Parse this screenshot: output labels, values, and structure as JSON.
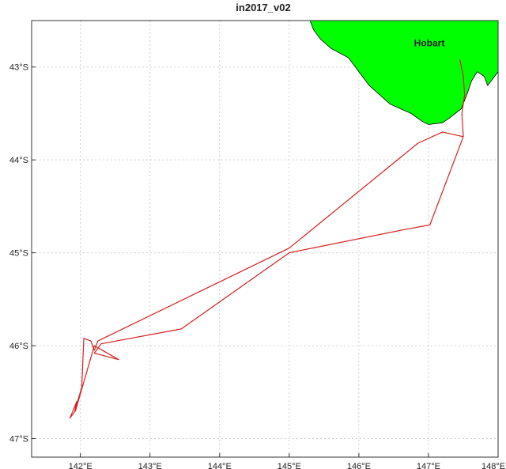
{
  "title": "in2017_v02",
  "colors": {
    "land": "#00ff00",
    "land_outline": "#000000",
    "track": "#d62020",
    "grid": "#d0d0d0",
    "background": "#ffffff"
  },
  "place": {
    "label": "Hobart",
    "lon": 147.33,
    "lat": -42.88
  },
  "axes": {
    "x_range": [
      141.3,
      148.0
    ],
    "y_range": [
      -47.2,
      -42.5
    ],
    "x_ticks": [
      {
        "value": 142,
        "label": "142°E"
      },
      {
        "value": 143,
        "label": "143°E"
      },
      {
        "value": 144,
        "label": "144°E"
      },
      {
        "value": 145,
        "label": "145°E"
      },
      {
        "value": 146,
        "label": "146°E"
      },
      {
        "value": 147,
        "label": "147°E"
      },
      {
        "value": 148,
        "label": "148°E"
      }
    ],
    "y_ticks": [
      {
        "value": -43,
        "label": "43°S"
      },
      {
        "value": -44,
        "label": "44°S"
      },
      {
        "value": -45,
        "label": "45°S"
      },
      {
        "value": -46,
        "label": "46°S"
      },
      {
        "value": -47,
        "label": "47°S"
      }
    ],
    "grid": true
  },
  "land": [
    [
      145.3,
      -42.5
    ],
    [
      148.0,
      -42.5
    ],
    [
      148.0,
      -43.05
    ],
    [
      147.95,
      -43.1
    ],
    [
      147.85,
      -43.2
    ],
    [
      147.8,
      -43.1
    ],
    [
      147.7,
      -43.05
    ],
    [
      147.62,
      -43.15
    ],
    [
      147.55,
      -43.3
    ],
    [
      147.47,
      -43.45
    ],
    [
      147.3,
      -43.55
    ],
    [
      147.2,
      -43.6
    ],
    [
      147.0,
      -43.62
    ],
    [
      146.9,
      -43.58
    ],
    [
      146.75,
      -43.5
    ],
    [
      146.6,
      -43.45
    ],
    [
      146.45,
      -43.4
    ],
    [
      146.3,
      -43.3
    ],
    [
      146.15,
      -43.2
    ],
    [
      146.0,
      -43.05
    ],
    [
      145.85,
      -42.9
    ],
    [
      145.6,
      -42.8
    ],
    [
      145.45,
      -42.7
    ],
    [
      145.35,
      -42.6
    ]
  ],
  "track": [
    [
      147.45,
      -42.92
    ],
    [
      147.5,
      -43.1
    ],
    [
      147.52,
      -43.3
    ],
    [
      147.48,
      -43.5
    ],
    [
      147.5,
      -43.75
    ],
    [
      147.02,
      -44.7
    ],
    [
      146.65,
      -44.75
    ],
    [
      145.0,
      -45.0
    ],
    [
      143.45,
      -45.82
    ],
    [
      142.3,
      -45.98
    ],
    [
      142.2,
      -46.08
    ],
    [
      142.55,
      -46.15
    ],
    [
      142.2,
      -46.0
    ],
    [
      141.93,
      -46.7
    ],
    [
      141.85,
      -46.78
    ],
    [
      141.95,
      -46.6
    ],
    [
      141.92,
      -46.7
    ],
    [
      142.02,
      -46.45
    ],
    [
      142.05,
      -45.92
    ],
    [
      142.15,
      -45.95
    ],
    [
      142.2,
      -46.05
    ],
    [
      142.25,
      -45.95
    ],
    [
      145.0,
      -44.95
    ],
    [
      146.85,
      -43.82
    ],
    [
      147.2,
      -43.7
    ],
    [
      147.5,
      -43.75
    ]
  ]
}
